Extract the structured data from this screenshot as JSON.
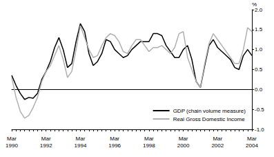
{
  "chart_data": {
    "type": "line",
    "y_label": "%",
    "categories": [
      "Mar 1990",
      null,
      null,
      null,
      null,
      null,
      null,
      null,
      "Mar 1992",
      null,
      null,
      null,
      null,
      null,
      null,
      null,
      "Mar 1994",
      null,
      null,
      null,
      null,
      null,
      null,
      null,
      "Mar 1996",
      null,
      null,
      null,
      null,
      null,
      null,
      null,
      "Mar 1998",
      null,
      null,
      null,
      null,
      null,
      null,
      null,
      "Mar 2000",
      null,
      null,
      null,
      null,
      null,
      null,
      null,
      "Mar 2002",
      null,
      null,
      null,
      null,
      null,
      null,
      null,
      "Mar 2004"
    ],
    "series": [
      {
        "name": "GDP (chain volume measure)",
        "color": "#000000",
        "values": [
          0.35,
          0.1,
          -0.1,
          -0.25,
          -0.2,
          -0.22,
          -0.1,
          0.25,
          0.45,
          0.7,
          1.05,
          1.3,
          1.0,
          0.55,
          0.65,
          1.2,
          1.65,
          1.45,
          0.9,
          0.6,
          0.7,
          0.9,
          1.25,
          1.2,
          1.0,
          0.9,
          0.8,
          0.85,
          1.0,
          1.1,
          1.2,
          1.2,
          1.2,
          1.4,
          1.4,
          1.35,
          1.1,
          0.95,
          0.8,
          0.8,
          1.0,
          1.1,
          0.75,
          0.2,
          0.05,
          0.6,
          1.1,
          1.25,
          1.05,
          0.95,
          0.85,
          0.75,
          0.55,
          0.5,
          0.85,
          1.0,
          0.85
        ]
      },
      {
        "name": "Real Gross Domestic Income",
        "color": "#b0b0b0",
        "values": [
          0.3,
          -0.2,
          -0.55,
          -0.72,
          -0.65,
          -0.45,
          -0.2,
          0.2,
          0.45,
          0.6,
          0.85,
          1.1,
          0.75,
          0.3,
          0.45,
          1.0,
          1.6,
          1.3,
          1.0,
          0.8,
          0.85,
          1.1,
          1.3,
          1.4,
          1.35,
          1.2,
          0.95,
          0.9,
          1.1,
          1.25,
          1.25,
          1.1,
          0.95,
          1.05,
          1.05,
          1.1,
          1.0,
          0.9,
          1.05,
          1.4,
          1.45,
          0.8,
          0.5,
          0.2,
          0.05,
          0.65,
          1.15,
          1.4,
          1.25,
          1.1,
          0.95,
          0.8,
          0.65,
          0.65,
          1.0,
          1.55,
          1.45
        ]
      }
    ],
    "ylim": [
      -1.0,
      2.0
    ],
    "yticks": [
      {
        "value": -1.0,
        "label": "-1.0"
      },
      {
        "value": -0.5,
        "label": "-0.5"
      },
      {
        "value": 0.0,
        "label": "0.0"
      },
      {
        "value": 0.5,
        "label": "0.5"
      },
      {
        "value": 1.0,
        "label": "1.0"
      },
      {
        "value": 1.5,
        "label": "1.5"
      },
      {
        "value": 2.0,
        "label": "2.0"
      }
    ],
    "grid": false,
    "legend": "lower right"
  }
}
